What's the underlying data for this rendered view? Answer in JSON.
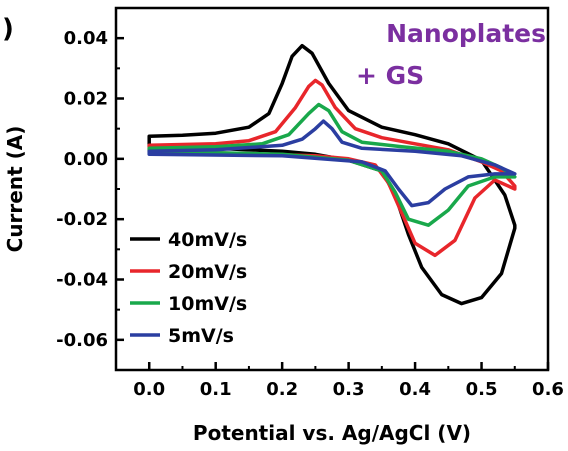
{
  "panel_mark": ")",
  "chart_data": {
    "type": "line",
    "title": "",
    "xlabel": "Potential vs. Ag/AgCl (V)",
    "ylabel": "Current (A)",
    "xlim": [
      -0.05,
      0.6
    ],
    "ylim": [
      -0.07,
      0.05
    ],
    "x_ticks": [
      0.0,
      0.1,
      0.2,
      0.3,
      0.4,
      0.5,
      0.6
    ],
    "x_tick_labels": [
      "0.0",
      "0.1",
      "0.2",
      "0.3",
      "0.4",
      "0.5",
      "0.6"
    ],
    "y_ticks": [
      0.04,
      0.02,
      0.0,
      -0.02,
      -0.04,
      -0.06
    ],
    "y_tick_labels": [
      "0.04",
      "0.02",
      "0.00",
      "-0.02",
      "-0.04",
      "-0.06"
    ],
    "grid": false,
    "legend_position": "lower-left",
    "annotation": {
      "lines": [
        "Nanoplates",
        "+ GS"
      ],
      "color": "#7b2fa0",
      "position": "top-right"
    },
    "series": [
      {
        "name": "40mV/s",
        "color": "#000000",
        "points": [
          [
            0.0,
            0.0075
          ],
          [
            0.05,
            0.0078
          ],
          [
            0.1,
            0.0085
          ],
          [
            0.15,
            0.0105
          ],
          [
            0.18,
            0.015
          ],
          [
            0.2,
            0.025
          ],
          [
            0.215,
            0.034
          ],
          [
            0.23,
            0.0375
          ],
          [
            0.245,
            0.035
          ],
          [
            0.27,
            0.025
          ],
          [
            0.3,
            0.016
          ],
          [
            0.35,
            0.0105
          ],
          [
            0.4,
            0.008
          ],
          [
            0.45,
            0.005
          ],
          [
            0.5,
            -0.0005
          ],
          [
            0.535,
            -0.012
          ],
          [
            0.55,
            -0.022
          ],
          [
            0.55,
            -0.023
          ],
          [
            0.53,
            -0.038
          ],
          [
            0.5,
            -0.046
          ],
          [
            0.47,
            -0.048
          ],
          [
            0.44,
            -0.045
          ],
          [
            0.41,
            -0.036
          ],
          [
            0.39,
            -0.025
          ],
          [
            0.37,
            -0.012
          ],
          [
            0.35,
            -0.004
          ],
          [
            0.3,
            -0.0005
          ],
          [
            0.25,
            0.0015
          ],
          [
            0.2,
            0.0025
          ],
          [
            0.1,
            0.0035
          ],
          [
            0.0,
            0.004
          ]
        ]
      },
      {
        "name": "20mV/s",
        "color": "#e8262b",
        "points": [
          [
            0.0,
            0.0045
          ],
          [
            0.1,
            0.005
          ],
          [
            0.15,
            0.006
          ],
          [
            0.19,
            0.009
          ],
          [
            0.22,
            0.017
          ],
          [
            0.24,
            0.024
          ],
          [
            0.25,
            0.026
          ],
          [
            0.26,
            0.0245
          ],
          [
            0.28,
            0.017
          ],
          [
            0.31,
            0.01
          ],
          [
            0.35,
            0.007
          ],
          [
            0.4,
            0.005
          ],
          [
            0.45,
            0.003
          ],
          [
            0.5,
            -0.001
          ],
          [
            0.53,
            -0.004
          ],
          [
            0.55,
            -0.009
          ],
          [
            0.55,
            -0.01
          ],
          [
            0.52,
            -0.007
          ],
          [
            0.49,
            -0.013
          ],
          [
            0.46,
            -0.027
          ],
          [
            0.43,
            -0.032
          ],
          [
            0.4,
            -0.028
          ],
          [
            0.38,
            -0.018
          ],
          [
            0.36,
            -0.008
          ],
          [
            0.34,
            -0.002
          ],
          [
            0.3,
            0.0
          ],
          [
            0.25,
            0.001
          ],
          [
            0.1,
            0.002
          ],
          [
            0.0,
            0.0025
          ]
        ]
      },
      {
        "name": "10mV/s",
        "color": "#19a84b",
        "points": [
          [
            0.0,
            0.0035
          ],
          [
            0.1,
            0.004
          ],
          [
            0.17,
            0.005
          ],
          [
            0.21,
            0.008
          ],
          [
            0.24,
            0.015
          ],
          [
            0.255,
            0.018
          ],
          [
            0.27,
            0.016
          ],
          [
            0.29,
            0.009
          ],
          [
            0.32,
            0.0055
          ],
          [
            0.38,
            0.004
          ],
          [
            0.45,
            0.0025
          ],
          [
            0.5,
            0.0
          ],
          [
            0.53,
            -0.003
          ],
          [
            0.55,
            -0.006
          ],
          [
            0.52,
            -0.006
          ],
          [
            0.48,
            -0.009
          ],
          [
            0.45,
            -0.017
          ],
          [
            0.42,
            -0.022
          ],
          [
            0.39,
            -0.02
          ],
          [
            0.37,
            -0.011
          ],
          [
            0.35,
            -0.004
          ],
          [
            0.3,
            -0.0005
          ],
          [
            0.2,
            0.0015
          ],
          [
            0.0,
            0.0025
          ]
        ]
      },
      {
        "name": "5mV/s",
        "color": "#2b3ea1",
        "points": [
          [
            0.0,
            0.0025
          ],
          [
            0.1,
            0.003
          ],
          [
            0.2,
            0.0045
          ],
          [
            0.23,
            0.0065
          ],
          [
            0.25,
            0.01
          ],
          [
            0.262,
            0.0125
          ],
          [
            0.275,
            0.01
          ],
          [
            0.29,
            0.0055
          ],
          [
            0.32,
            0.0035
          ],
          [
            0.4,
            0.0025
          ],
          [
            0.47,
            0.001
          ],
          [
            0.52,
            -0.002
          ],
          [
            0.55,
            -0.005
          ],
          [
            0.52,
            -0.005
          ],
          [
            0.48,
            -0.006
          ],
          [
            0.445,
            -0.01
          ],
          [
            0.42,
            -0.0145
          ],
          [
            0.395,
            -0.0155
          ],
          [
            0.375,
            -0.01
          ],
          [
            0.355,
            -0.004
          ],
          [
            0.32,
            -0.001
          ],
          [
            0.2,
            0.001
          ],
          [
            0.0,
            0.0015
          ]
        ]
      }
    ]
  }
}
